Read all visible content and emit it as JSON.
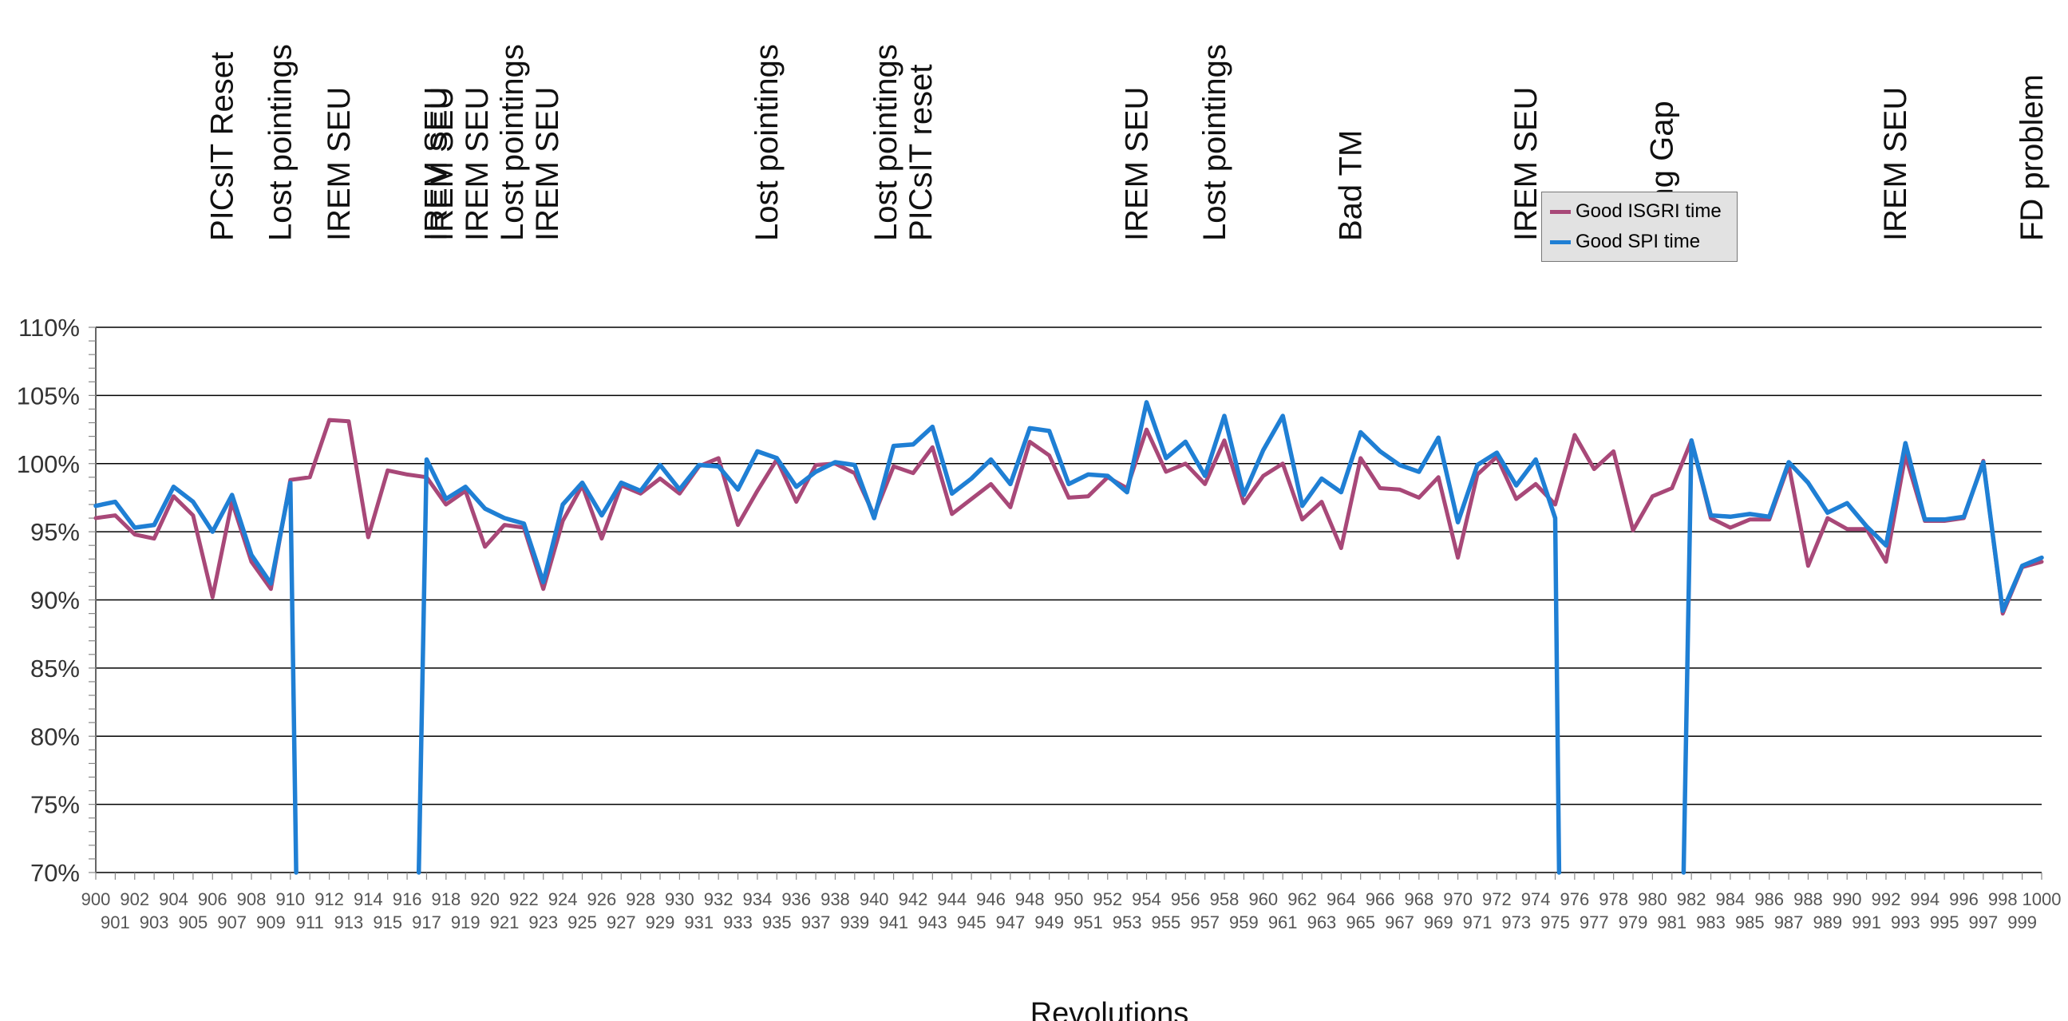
{
  "chart_data": {
    "type": "line",
    "xlabel": "Revolutions",
    "ylabel": "",
    "x_start": 900,
    "x_end": 1000,
    "ylim": [
      70,
      110
    ],
    "y_ticks": [
      "70%",
      "75%",
      "80%",
      "85%",
      "90%",
      "95%",
      "100%",
      "105%",
      "110%"
    ],
    "grid": true,
    "legend_position": "top-right",
    "series": [
      {
        "name": "Good ISGRI time",
        "color": "#a84878",
        "values": [
          96.0,
          96.2,
          94.8,
          94.5,
          97.6,
          96.2,
          90.2,
          97.2,
          92.8,
          90.8,
          98.8,
          99.0,
          103.2,
          103.1,
          94.6,
          99.5,
          99.2,
          99.0,
          97.0,
          98.0,
          93.9,
          95.5,
          95.3,
          90.8,
          95.8,
          98.4,
          94.5,
          98.4,
          97.8,
          98.9,
          97.8,
          99.8,
          100.4,
          95.5,
          98.0,
          100.3,
          97.2,
          99.9,
          100.0,
          99.3,
          96.2,
          99.8,
          99.3,
          101.2,
          96.3,
          97.4,
          98.5,
          96.8,
          101.6,
          100.6,
          97.5,
          97.6,
          99.0,
          98.2,
          102.5,
          99.4,
          100.0,
          98.5,
          101.7,
          97.1,
          99.1,
          100.0,
          95.9,
          97.2,
          93.8,
          100.4,
          98.2,
          98.1,
          97.5,
          99.0,
          93.1,
          99.2,
          100.5,
          97.4,
          98.5,
          97.0,
          102.1,
          99.6,
          100.9,
          95.1,
          97.6,
          98.2,
          101.7,
          96.0,
          95.3,
          95.9,
          95.9,
          99.9,
          92.5,
          96.0,
          95.2,
          95.2,
          92.8,
          100.6,
          95.8,
          95.8,
          96.0,
          100.2,
          89.0,
          92.4,
          92.8
        ]
      },
      {
        "name": "Good SPI time",
        "color": "#1f7fd4",
        "values": [
          96.9,
          97.2,
          95.3,
          95.5,
          98.3,
          97.2,
          95.0,
          97.7,
          93.3,
          91.2,
          98.6,
          null,
          null,
          null,
          null,
          null,
          null,
          100.3,
          97.4,
          98.3,
          96.7,
          96.0,
          95.6,
          91.3,
          97.0,
          98.6,
          96.2,
          98.6,
          98.0,
          99.9,
          98.1,
          99.9,
          99.8,
          98.1,
          100.9,
          100.4,
          98.3,
          99.4,
          100.1,
          99.9,
          96.0,
          101.3,
          101.4,
          102.7,
          97.8,
          98.9,
          100.3,
          98.5,
          102.6,
          102.4,
          98.5,
          99.2,
          99.1,
          97.9,
          104.5,
          100.4,
          101.6,
          99.1,
          103.5,
          97.7,
          101.0,
          103.5,
          96.9,
          98.9,
          97.9,
          102.3,
          100.9,
          99.9,
          99.4,
          101.9,
          95.7,
          99.9,
          100.8,
          98.4,
          100.3,
          96.0,
          null,
          null,
          null,
          null,
          null,
          null,
          101.7,
          96.2,
          96.1,
          96.3,
          96.1,
          100.1,
          98.6,
          96.4,
          97.1,
          95.4,
          94.0,
          101.5,
          95.9,
          95.9,
          96.1,
          100.1,
          89.2,
          92.5,
          93.1
        ]
      }
    ],
    "dropouts": [
      {
        "series": 1,
        "down_x": 910.3,
        "down_to": 70,
        "up_x": 916.6,
        "up_from": 70,
        "up_to": 100.3
      },
      {
        "series": 1,
        "down_x": 975.2,
        "down_to": 70,
        "up_x": 981.6,
        "up_from": 70,
        "up_to": 101.7
      }
    ],
    "annotations": [
      {
        "x": 906.5,
        "lines": [
          "PICsIT Reset"
        ]
      },
      {
        "x": 909.5,
        "lines": [
          "Lost pointings"
        ]
      },
      {
        "x": 912.5,
        "lines": [
          "IREM SEU"
        ]
      },
      {
        "x": 917.5,
        "lines": [
          "IREM SEU"
        ]
      },
      {
        "x": 920.5,
        "lines": [
          "IREM SEU",
          "IREM SEU",
          "Lost pointings",
          "IREM SEU"
        ]
      },
      {
        "x": 934.5,
        "lines": [
          "Lost pointings"
        ]
      },
      {
        "x": 941.5,
        "lines": [
          "Lost pointings",
          "PICsIT reset"
        ]
      },
      {
        "x": 953.5,
        "lines": [
          "IREM SEU"
        ]
      },
      {
        "x": 957.5,
        "lines": [
          "Lost pointings"
        ]
      },
      {
        "x": 964.5,
        "lines": [
          "Bad TM"
        ]
      },
      {
        "x": 973.5,
        "lines": [
          "IREM SEU"
        ]
      },
      {
        "x": 980.5,
        "lines": [
          "Long Gap"
        ]
      },
      {
        "x": 992.5,
        "lines": [
          "IREM SEU"
        ]
      },
      {
        "x": 999.5,
        "lines": [
          "FD problem"
        ]
      }
    ]
  }
}
